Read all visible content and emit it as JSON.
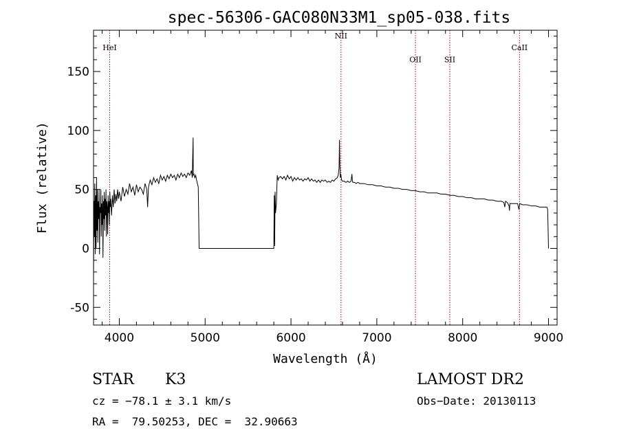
{
  "chart_data": {
    "type": "line",
    "title": "spec-56306-GAC080N33M1_sp05-038.fits",
    "xlabel": "Wavelength (Å)",
    "ylabel": "Flux (relative)",
    "xlim": [
      3700,
      9100
    ],
    "ylim": [
      -65,
      185
    ],
    "xticks": [
      4000,
      5000,
      6000,
      7000,
      8000,
      9000
    ],
    "yticks": [
      -50,
      0,
      50,
      100,
      150
    ],
    "grid": false,
    "series": [
      {
        "line_color": "#000000",
        "points": [
          [
            3700,
            -25
          ],
          [
            3705,
            40
          ],
          [
            3710,
            10
          ],
          [
            3715,
            55
          ],
          [
            3720,
            -5
          ],
          [
            3725,
            45
          ],
          [
            3730,
            0
          ],
          [
            3735,
            60
          ],
          [
            3740,
            15
          ],
          [
            3745,
            50
          ],
          [
            3750,
            5
          ],
          [
            3755,
            40
          ],
          [
            3760,
            25
          ],
          [
            3765,
            50
          ],
          [
            3770,
            -5
          ],
          [
            3775,
            35
          ],
          [
            3780,
            30
          ],
          [
            3785,
            50
          ],
          [
            3790,
            10
          ],
          [
            3795,
            38
          ],
          [
            3800,
            20
          ],
          [
            3805,
            45
          ],
          [
            3810,
            -8
          ],
          [
            3815,
            40
          ],
          [
            3820,
            25
          ],
          [
            3825,
            48
          ],
          [
            3830,
            15
          ],
          [
            3835,
            42
          ],
          [
            3840,
            28
          ],
          [
            3845,
            50
          ],
          [
            3850,
            10
          ],
          [
            3855,
            40
          ],
          [
            3860,
            35
          ],
          [
            3865,
            12
          ],
          [
            3870,
            45
          ],
          [
            3875,
            30
          ],
          [
            3880,
            40
          ],
          [
            3885,
            20
          ],
          [
            3890,
            48
          ],
          [
            3895,
            35
          ],
          [
            3900,
            42
          ],
          [
            3910,
            28
          ],
          [
            3920,
            45
          ],
          [
            3930,
            35
          ],
          [
            3940,
            50
          ],
          [
            3950,
            38
          ],
          [
            3960,
            46
          ],
          [
            3970,
            40
          ],
          [
            3980,
            50
          ],
          [
            3990,
            42
          ],
          [
            4000,
            48
          ],
          [
            4020,
            40
          ],
          [
            4040,
            52
          ],
          [
            4060,
            44
          ],
          [
            4080,
            50
          ],
          [
            4100,
            46
          ],
          [
            4120,
            55
          ],
          [
            4140,
            48
          ],
          [
            4160,
            52
          ],
          [
            4180,
            45
          ],
          [
            4200,
            54
          ],
          [
            4220,
            48
          ],
          [
            4240,
            52
          ],
          [
            4260,
            50
          ],
          [
            4280,
            46
          ],
          [
            4300,
            55
          ],
          [
            4320,
            50
          ],
          [
            4330,
            35
          ],
          [
            4340,
            52
          ],
          [
            4360,
            58
          ],
          [
            4380,
            54
          ],
          [
            4400,
            60
          ],
          [
            4420,
            56
          ],
          [
            4440,
            59
          ],
          [
            4460,
            55
          ],
          [
            4480,
            62
          ],
          [
            4500,
            58
          ],
          [
            4520,
            61
          ],
          [
            4540,
            57
          ],
          [
            4560,
            62
          ],
          [
            4580,
            59
          ],
          [
            4600,
            63
          ],
          [
            4620,
            60
          ],
          [
            4640,
            62
          ],
          [
            4660,
            58
          ],
          [
            4680,
            63
          ],
          [
            4700,
            60
          ],
          [
            4720,
            64
          ],
          [
            4740,
            61
          ],
          [
            4760,
            63
          ],
          [
            4780,
            60
          ],
          [
            4800,
            64
          ],
          [
            4820,
            62
          ],
          [
            4840,
            66
          ],
          [
            4850,
            60
          ],
          [
            4860,
            94
          ],
          [
            4862,
            62
          ],
          [
            4870,
            63
          ],
          [
            4880,
            60
          ],
          [
            4890,
            62
          ],
          [
            4900,
            58
          ],
          [
            4910,
            55
          ],
          [
            4920,
            52
          ],
          [
            4930,
            0
          ],
          [
            5000,
            0
          ],
          [
            5200,
            0
          ],
          [
            5400,
            0
          ],
          [
            5600,
            0
          ],
          [
            5800,
            0
          ],
          [
            5805,
            45
          ],
          [
            5810,
            2
          ],
          [
            5815,
            48
          ],
          [
            5820,
            30
          ],
          [
            5830,
            38
          ],
          [
            5840,
            62
          ],
          [
            5850,
            58
          ],
          [
            5860,
            60
          ],
          [
            5880,
            61
          ],
          [
            5900,
            59
          ],
          [
            5920,
            61
          ],
          [
            5940,
            58
          ],
          [
            5960,
            62
          ],
          [
            5980,
            59
          ],
          [
            6000,
            61
          ],
          [
            6020,
            57
          ],
          [
            6040,
            60
          ],
          [
            6060,
            58
          ],
          [
            6080,
            60
          ],
          [
            6100,
            58
          ],
          [
            6120,
            59
          ],
          [
            6140,
            57
          ],
          [
            6160,
            59
          ],
          [
            6180,
            58
          ],
          [
            6200,
            60
          ],
          [
            6220,
            57
          ],
          [
            6240,
            59
          ],
          [
            6260,
            57
          ],
          [
            6280,
            58
          ],
          [
            6300,
            56
          ],
          [
            6320,
            58
          ],
          [
            6340,
            56
          ],
          [
            6360,
            58
          ],
          [
            6380,
            57
          ],
          [
            6400,
            58
          ],
          [
            6420,
            56
          ],
          [
            6440,
            57
          ],
          [
            6460,
            56
          ],
          [
            6480,
            58
          ],
          [
            6500,
            57
          ],
          [
            6520,
            59
          ],
          [
            6540,
            60
          ],
          [
            6550,
            62
          ],
          [
            6560,
            68
          ],
          [
            6565,
            92
          ],
          [
            6570,
            70
          ],
          [
            6575,
            60
          ],
          [
            6580,
            63
          ],
          [
            6590,
            58
          ],
          [
            6600,
            57
          ],
          [
            6620,
            57
          ],
          [
            6640,
            56
          ],
          [
            6660,
            57
          ],
          [
            6680,
            56
          ],
          [
            6700,
            57
          ],
          [
            6710,
            63
          ],
          [
            6715,
            58
          ],
          [
            6720,
            56
          ],
          [
            6740,
            56
          ],
          [
            6760,
            55
          ],
          [
            6780,
            56
          ],
          [
            6800,
            55
          ],
          [
            6850,
            55
          ],
          [
            6900,
            54
          ],
          [
            6950,
            54
          ],
          [
            7000,
            53
          ],
          [
            7050,
            53
          ],
          [
            7100,
            52
          ],
          [
            7150,
            52
          ],
          [
            7200,
            51
          ],
          [
            7250,
            51
          ],
          [
            7300,
            50
          ],
          [
            7350,
            50
          ],
          [
            7400,
            49
          ],
          [
            7450,
            49
          ],
          [
            7500,
            48
          ],
          [
            7550,
            48
          ],
          [
            7600,
            47
          ],
          [
            7650,
            47
          ],
          [
            7700,
            47
          ],
          [
            7750,
            46
          ],
          [
            7800,
            46
          ],
          [
            7850,
            45
          ],
          [
            7900,
            45
          ],
          [
            7950,
            44
          ],
          [
            8000,
            44
          ],
          [
            8050,
            43
          ],
          [
            8100,
            43
          ],
          [
            8150,
            42
          ],
          [
            8200,
            42
          ],
          [
            8250,
            42
          ],
          [
            8300,
            41
          ],
          [
            8350,
            41
          ],
          [
            8400,
            40
          ],
          [
            8450,
            40
          ],
          [
            8480,
            39
          ],
          [
            8490,
            35
          ],
          [
            8500,
            40
          ],
          [
            8520,
            39
          ],
          [
            8540,
            36
          ],
          [
            8545,
            32
          ],
          [
            8550,
            38
          ],
          [
            8600,
            38
          ],
          [
            8640,
            38
          ],
          [
            8655,
            33
          ],
          [
            8665,
            38
          ],
          [
            8700,
            37
          ],
          [
            8750,
            37
          ],
          [
            8800,
            36
          ],
          [
            8850,
            36
          ],
          [
            8900,
            35
          ],
          [
            8950,
            35
          ],
          [
            8980,
            35
          ],
          [
            8990,
            33
          ],
          [
            9000,
            0
          ]
        ]
      }
    ],
    "annotations": [
      {
        "label": "HeI",
        "x": 3888,
        "y": 168
      },
      {
        "label": "NII",
        "x": 6583,
        "y": 178
      },
      {
        "label": "OII",
        "x": 7450,
        "y": 158
      },
      {
        "label": "SII",
        "x": 7850,
        "y": 158
      },
      {
        "label": "CaII",
        "x": 8662,
        "y": 168
      }
    ],
    "annotation_line_color": "#a00000",
    "axis_color": "#000000"
  },
  "info": {
    "object_type": "STAR",
    "subclass": "K3",
    "survey": "LAMOST DR2",
    "redshift": "cz = −78.1 ± 3.1 km/s",
    "obs_date": "Obs−Date: 20130113",
    "coords": "RA =  79.50253, DEC =  32.90663"
  }
}
